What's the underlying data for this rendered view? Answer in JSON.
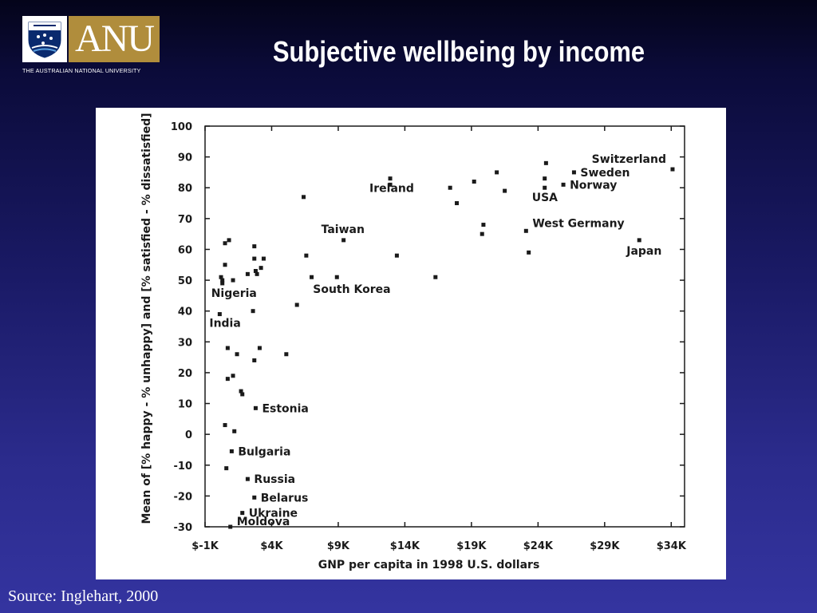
{
  "header": {
    "logo_text": "ANU",
    "logo_subtitle": "THE AUSTRALIAN NATIONAL UNIVERSITY",
    "title": "Subjective wellbeing by income"
  },
  "footer": {
    "source": "Source: Inglehart, 2000"
  },
  "colors": {
    "background_top": "#04041a",
    "background_bottom": "#3434a0",
    "logo_gold": "#b08d3c",
    "chart_ink": "#1a1a1a"
  },
  "icons": {
    "logo": "anu-crest-icon"
  },
  "chart_data": {
    "type": "scatter",
    "xlabel": "GNP per capita in 1998 U.S. dollars",
    "ylabel": "Mean of [% happy - % unhappy] and [% satisfied - % dissatisfied]",
    "xlim": [
      -1000,
      35000
    ],
    "ylim": [
      -30,
      100
    ],
    "x_tick_values": [
      -1000,
      4000,
      9000,
      14000,
      19000,
      24000,
      29000,
      34000
    ],
    "x_tick_labels": [
      "$-1K",
      "$4K",
      "$9K",
      "$14K",
      "$19K",
      "$24K",
      "$29K",
      "$34K"
    ],
    "y_tick_values": [
      100,
      90,
      80,
      70,
      60,
      50,
      40,
      30,
      20,
      10,
      0,
      -10,
      -20,
      -30
    ],
    "y_tick_labels": [
      "100",
      "90",
      "80",
      "70",
      "60",
      "50",
      "40",
      "30",
      "20",
      "10",
      "0",
      "-10",
      "-20",
      "-30"
    ],
    "grid": false,
    "points": [
      {
        "x": 34100,
        "y": 86,
        "label": "Switzerland"
      },
      {
        "x": 26700,
        "y": 85,
        "label": "Sweden"
      },
      {
        "x": 25900,
        "y": 81,
        "label": "Norway"
      },
      {
        "x": 24500,
        "y": 80,
        "label": "USA"
      },
      {
        "x": 23100,
        "y": 66,
        "label": "West Germany"
      },
      {
        "x": 31600,
        "y": 63,
        "label": "Japan"
      },
      {
        "x": 12900,
        "y": 81,
        "label": "Ireland"
      },
      {
        "x": 9400,
        "y": 63,
        "label": "Taiwan"
      },
      {
        "x": 8900,
        "y": 51,
        "label": "South Korea"
      },
      {
        "x": 300,
        "y": 50,
        "label": "Nigeria"
      },
      {
        "x": 100,
        "y": 39,
        "label": "India"
      },
      {
        "x": 2800,
        "y": 8.5,
        "label": "Estonia"
      },
      {
        "x": 1000,
        "y": -5.5,
        "label": "Bulgaria"
      },
      {
        "x": 2200,
        "y": -14.5,
        "label": "Russia"
      },
      {
        "x": 2700,
        "y": -20.5,
        "label": "Belarus"
      },
      {
        "x": 1800,
        "y": -25.5,
        "label": "Ukraine"
      },
      {
        "x": 900,
        "y": -30,
        "label": "Moldova"
      },
      {
        "x": 24600,
        "y": 88,
        "label": ""
      },
      {
        "x": 24500,
        "y": 83,
        "label": ""
      },
      {
        "x": 20900,
        "y": 85,
        "label": ""
      },
      {
        "x": 19200,
        "y": 82,
        "label": ""
      },
      {
        "x": 17400,
        "y": 80,
        "label": ""
      },
      {
        "x": 21500,
        "y": 79,
        "label": ""
      },
      {
        "x": 17900,
        "y": 75,
        "label": ""
      },
      {
        "x": 19900,
        "y": 68,
        "label": ""
      },
      {
        "x": 19800,
        "y": 65,
        "label": ""
      },
      {
        "x": 23300,
        "y": 59,
        "label": ""
      },
      {
        "x": 12900,
        "y": 83,
        "label": ""
      },
      {
        "x": 6400,
        "y": 77,
        "label": ""
      },
      {
        "x": 6600,
        "y": 58,
        "label": ""
      },
      {
        "x": 7000,
        "y": 51,
        "label": ""
      },
      {
        "x": 13400,
        "y": 58,
        "label": ""
      },
      {
        "x": 16300,
        "y": 51,
        "label": ""
      },
      {
        "x": 5900,
        "y": 42,
        "label": ""
      },
      {
        "x": 5100,
        "y": 26,
        "label": ""
      },
      {
        "x": 3400,
        "y": 57,
        "label": ""
      },
      {
        "x": 3200,
        "y": 54,
        "label": ""
      },
      {
        "x": 2700,
        "y": 61,
        "label": ""
      },
      {
        "x": 2700,
        "y": 57,
        "label": ""
      },
      {
        "x": 2800,
        "y": 53,
        "label": ""
      },
      {
        "x": 2900,
        "y": 52,
        "label": ""
      },
      {
        "x": 2200,
        "y": 52,
        "label": ""
      },
      {
        "x": 2600,
        "y": 40,
        "label": ""
      },
      {
        "x": 2700,
        "y": 24,
        "label": ""
      },
      {
        "x": 3100,
        "y": 28,
        "label": ""
      },
      {
        "x": 500,
        "y": 62,
        "label": ""
      },
      {
        "x": 800,
        "y": 63,
        "label": ""
      },
      {
        "x": 500,
        "y": 55,
        "label": ""
      },
      {
        "x": 200,
        "y": 51,
        "label": ""
      },
      {
        "x": 300,
        "y": 49,
        "label": ""
      },
      {
        "x": 1100,
        "y": 50,
        "label": ""
      },
      {
        "x": 700,
        "y": 28,
        "label": ""
      },
      {
        "x": 1400,
        "y": 26,
        "label": ""
      },
      {
        "x": 700,
        "y": 18,
        "label": ""
      },
      {
        "x": 1100,
        "y": 19,
        "label": ""
      },
      {
        "x": 1700,
        "y": 14,
        "label": ""
      },
      {
        "x": 1800,
        "y": 13,
        "label": ""
      },
      {
        "x": 500,
        "y": 3,
        "label": ""
      },
      {
        "x": 1200,
        "y": 1,
        "label": ""
      },
      {
        "x": 600,
        "y": -11,
        "label": ""
      }
    ]
  }
}
